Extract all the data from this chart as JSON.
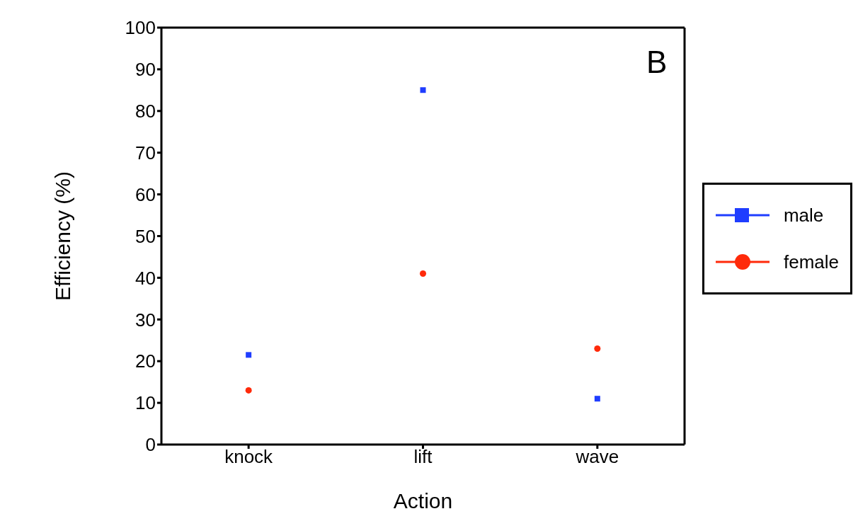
{
  "chart_data": {
    "type": "scatter",
    "xlabel": "Action",
    "ylabel": "Efficiency (%)",
    "categories": [
      "knock",
      "lift",
      "wave"
    ],
    "series": [
      {
        "name": "male",
        "color": "#1f3dff",
        "marker": "square",
        "values": [
          21.5,
          85,
          11
        ]
      },
      {
        "name": "female",
        "color": "#ff2a0a",
        "marker": "circle",
        "values": [
          13,
          41,
          23
        ]
      }
    ],
    "ylim": [
      0,
      100
    ],
    "yticks": [
      0,
      10,
      20,
      30,
      40,
      50,
      60,
      70,
      80,
      90,
      100
    ],
    "legend": "right",
    "annotations": [
      "B"
    ]
  }
}
